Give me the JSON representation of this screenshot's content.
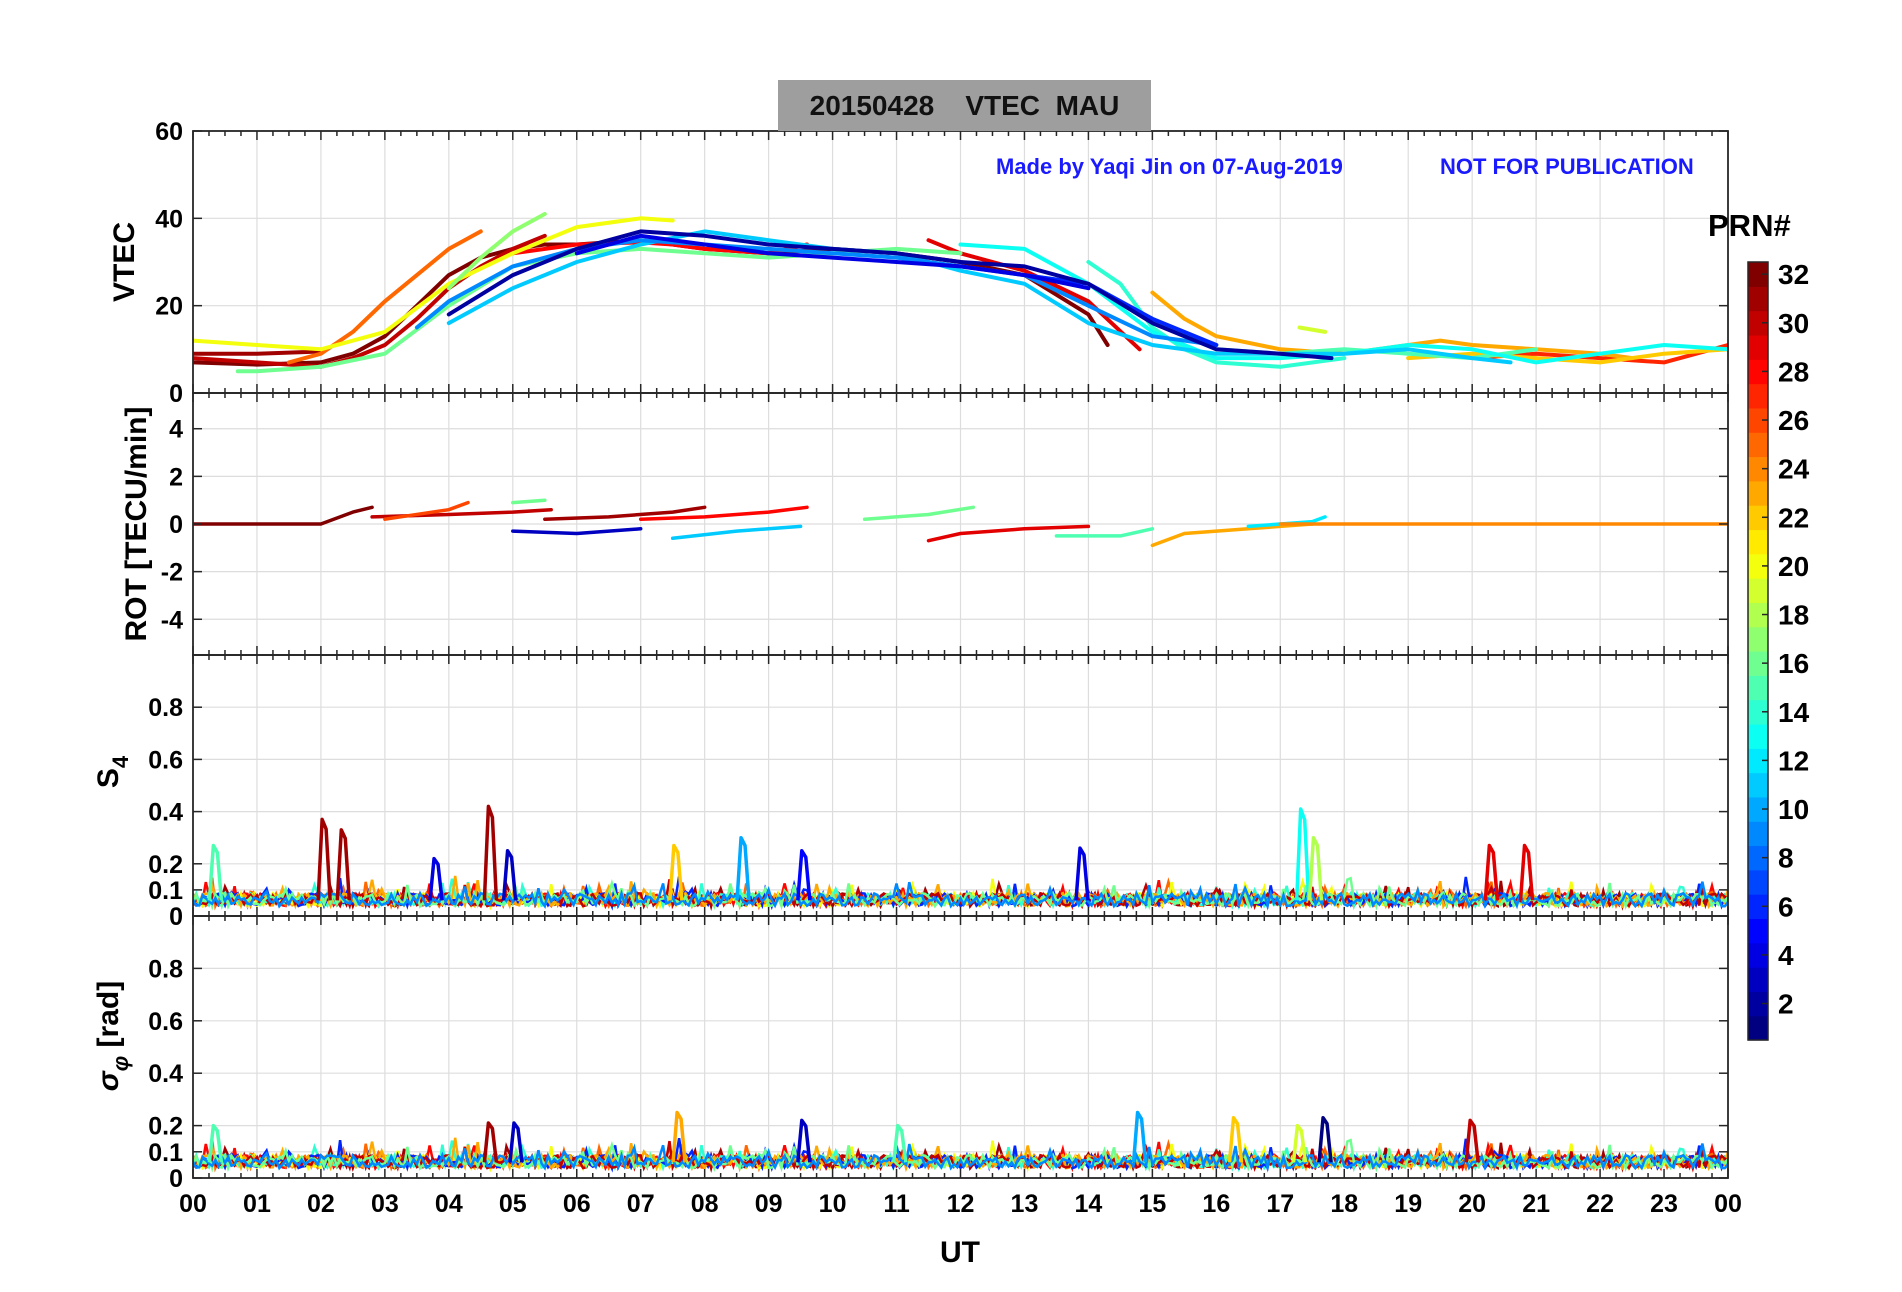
{
  "title": {
    "date": "20150428",
    "quantity": "VTEC",
    "station": "MAU"
  },
  "watermark": {
    "author": "Made by Yaqi Jin on 07-Aug-2019",
    "notice": "NOT FOR PUBLICATION"
  },
  "colorbar": {
    "title": "PRN#",
    "ticks": [
      "2",
      "4",
      "6",
      "8",
      "10",
      "12",
      "14",
      "16",
      "18",
      "20",
      "22",
      "24",
      "26",
      "28",
      "30",
      "32"
    ],
    "range": [
      1,
      32
    ],
    "colormap": "jet",
    "colors": {
      "low": "#00008f",
      "mid": "#00ffff",
      "high": "#800000"
    }
  },
  "colors": {
    "grid": "#dddddd",
    "axis": "#262626",
    "title_bg": "#9e9e9e",
    "watermark": "#1a1aff"
  },
  "x_axis": {
    "label": "UT",
    "ticks": [
      "00",
      "01",
      "02",
      "03",
      "04",
      "05",
      "06",
      "07",
      "08",
      "09",
      "10",
      "11",
      "12",
      "13",
      "14",
      "15",
      "16",
      "17",
      "18",
      "19",
      "20",
      "21",
      "22",
      "23",
      "00"
    ],
    "range": [
      0,
      24
    ]
  },
  "chart_data": [
    {
      "type": "line",
      "panel": "vtec",
      "ylabel": "VTEC",
      "ylim": [
        0,
        60
      ],
      "yticks": [
        "0",
        "20",
        "40",
        "60"
      ],
      "grid": true,
      "series": [
        {
          "prn": 32,
          "x": [
            0,
            1,
            2,
            2.5,
            3,
            3.5,
            4,
            4.5,
            5,
            5.5,
            6,
            7,
            8,
            9,
            10,
            11,
            12,
            13,
            14,
            14.3
          ],
          "values": [
            7,
            6.5,
            7,
            9,
            13,
            20,
            27,
            31,
            33,
            34,
            34,
            35,
            33,
            32,
            33,
            32,
            30,
            27,
            18,
            11
          ]
        },
        {
          "prn": 31,
          "x": [
            0,
            1,
            2
          ],
          "values": [
            9,
            9,
            9.5
          ]
        },
        {
          "prn": 30,
          "x": [
            0,
            1,
            2,
            2.5,
            3,
            3.5,
            4,
            4.5,
            5,
            5.5
          ],
          "values": [
            8,
            7,
            6,
            8,
            11,
            17,
            24,
            29,
            33,
            36
          ]
        },
        {
          "prn": 29,
          "x": [
            11.5,
            12,
            13,
            14,
            14.8
          ],
          "values": [
            35,
            32,
            28,
            21,
            10
          ]
        },
        {
          "prn": 28,
          "x": [
            5,
            6,
            7,
            7.5,
            8,
            9,
            9.6
          ],
          "values": [
            32,
            34,
            34.5,
            34,
            33,
            32,
            34
          ]
        },
        {
          "prn": 25,
          "x": [
            1.5,
            2,
            2.5,
            3,
            3.5,
            4,
            4.5
          ],
          "values": [
            7,
            9,
            14,
            21,
            27,
            33,
            37
          ]
        },
        {
          "prn": 27,
          "x": [
            20,
            21,
            22,
            23,
            24
          ],
          "values": [
            8,
            9,
            8,
            7,
            11
          ]
        },
        {
          "prn": 23,
          "x": [
            15,
            15.5,
            16,
            17,
            18,
            19,
            19.5,
            20,
            21,
            22,
            22.5
          ],
          "values": [
            23,
            17,
            13,
            10,
            9,
            11,
            12,
            11,
            10,
            9,
            8
          ]
        },
        {
          "prn": 22,
          "x": [
            19,
            20,
            21,
            22,
            23,
            24
          ],
          "values": [
            8,
            9,
            8,
            7,
            9,
            10
          ]
        },
        {
          "prn": 20,
          "x": [
            0,
            1,
            2,
            3,
            4,
            5,
            6,
            7,
            7.5
          ],
          "values": [
            12,
            11,
            10,
            14,
            25,
            32,
            38,
            40,
            39.5
          ]
        },
        {
          "prn": 19,
          "x": [
            17.3,
            17.7
          ],
          "values": [
            15,
            14
          ]
        },
        {
          "prn": 17,
          "x": [
            4,
            4.5,
            5,
            5.5
          ],
          "values": [
            24,
            31,
            37,
            41
          ]
        },
        {
          "prn": 16,
          "x": [
            0.7,
            1,
            2,
            3,
            4,
            5,
            6,
            7,
            8,
            9,
            10,
            11,
            12
          ],
          "values": [
            5,
            5,
            6,
            9,
            20,
            29,
            32,
            33,
            32,
            31,
            32,
            33,
            32
          ]
        },
        {
          "prn": 15,
          "x": [
            15,
            16,
            17,
            18,
            19,
            20,
            21
          ],
          "values": [
            17,
            10,
            9,
            10,
            9,
            8,
            10
          ]
        },
        {
          "prn": 14,
          "x": [
            14,
            14.5,
            15,
            15.5,
            16,
            17,
            18
          ],
          "values": [
            30,
            25,
            15,
            10,
            7,
            6,
            8
          ]
        },
        {
          "prn": 13,
          "x": [
            12,
            13,
            14,
            15,
            16,
            17,
            18,
            19,
            20,
            21,
            22,
            23,
            24
          ],
          "values": [
            34,
            33,
            25,
            14,
            8,
            8,
            9,
            11,
            10,
            7,
            9,
            11,
            10
          ]
        },
        {
          "prn": 11,
          "x": [
            4,
            5,
            6,
            7,
            8,
            9,
            10,
            11,
            12,
            13,
            14,
            15,
            16,
            17,
            18,
            19,
            20,
            20.6
          ],
          "values": [
            16,
            24,
            30,
            34,
            37,
            35,
            33,
            32,
            28,
            25,
            16,
            11,
            9,
            9,
            9,
            10,
            8,
            7
          ]
        },
        {
          "prn": 9,
          "x": [
            3.5,
            4,
            5,
            6,
            7,
            8,
            9,
            10,
            11,
            12,
            13,
            14,
            15,
            16
          ],
          "values": [
            15,
            21,
            29,
            33,
            35,
            34,
            33,
            32,
            31,
            29,
            27,
            20,
            13,
            11
          ]
        },
        {
          "prn": 6,
          "x": [
            13,
            14,
            15,
            16
          ],
          "values": [
            27,
            25,
            17,
            11
          ]
        },
        {
          "prn": 4,
          "x": [
            6,
            7,
            8,
            9,
            10,
            11,
            12,
            13,
            14
          ],
          "values": [
            32,
            36,
            34,
            32,
            31,
            30,
            29,
            27,
            24
          ]
        },
        {
          "prn": 2,
          "x": [
            4,
            5,
            6,
            7,
            8,
            9,
            10,
            11,
            12,
            13,
            14,
            15,
            16,
            17,
            17.8
          ],
          "values": [
            18,
            27,
            33,
            37,
            36,
            34,
            33,
            32,
            30,
            29,
            25,
            16,
            10,
            9,
            8
          ]
        }
      ]
    },
    {
      "type": "line",
      "panel": "rot",
      "ylabel": "ROT [TECU/min]",
      "ylim": [
        -5.5,
        5.5
      ],
      "yticks": [
        "-4",
        "-2",
        "0",
        "2",
        "4"
      ],
      "grid": true,
      "series": [
        {
          "prn": 32,
          "x": [
            0,
            2,
            2.3,
            2.5,
            2.8
          ],
          "values": [
            0,
            0,
            0.3,
            0.5,
            0.7
          ]
        },
        {
          "prn": 30,
          "x": [
            2.8,
            4,
            5,
            5.6
          ],
          "values": [
            0.3,
            0.4,
            0.5,
            0.6
          ]
        },
        {
          "prn": 26,
          "x": [
            3,
            4,
            4.3
          ],
          "values": [
            0.2,
            0.6,
            0.9
          ]
        },
        {
          "prn": 16,
          "x": [
            5,
            5.5
          ],
          "values": [
            0.9,
            1.0
          ]
        },
        {
          "prn": 31,
          "x": [
            5.5,
            6.5,
            7.5,
            8
          ],
          "values": [
            0.2,
            0.3,
            0.5,
            0.7
          ]
        },
        {
          "prn": 28,
          "x": [
            7,
            8,
            9,
            9.6
          ],
          "values": [
            0.2,
            0.3,
            0.5,
            0.7
          ]
        },
        {
          "prn": 11,
          "x": [
            7.5,
            8.5,
            9.5
          ],
          "values": [
            -0.6,
            -0.3,
            -0.1
          ]
        },
        {
          "prn": 16,
          "x": [
            10.5,
            11.5,
            12.2
          ],
          "values": [
            0.2,
            0.4,
            0.7
          ]
        },
        {
          "prn": 29,
          "x": [
            11.5,
            12,
            13,
            14
          ],
          "values": [
            -0.7,
            -0.4,
            -0.2,
            -0.1
          ]
        },
        {
          "prn": 3,
          "x": [
            5,
            6,
            7
          ],
          "values": [
            -0.3,
            -0.4,
            -0.2
          ]
        },
        {
          "prn": 15,
          "x": [
            13.5,
            14.5,
            15
          ],
          "values": [
            -0.5,
            -0.5,
            -0.2
          ]
        },
        {
          "prn": 23,
          "x": [
            15,
            15.5,
            16.5,
            17.5
          ],
          "values": [
            -0.9,
            -0.4,
            -0.2,
            0
          ]
        },
        {
          "prn": 12,
          "x": [
            16.5,
            17.5,
            17.7
          ],
          "values": [
            -0.1,
            0.1,
            0.3
          ]
        },
        {
          "prn": 24,
          "x": [
            17,
            20,
            22,
            24
          ],
          "values": [
            0,
            0,
            0,
            0
          ]
        }
      ]
    },
    {
      "type": "line",
      "panel": "s4",
      "ylabel": "S4",
      "ylim": [
        0,
        1
      ],
      "yticks": [
        "0",
        "0.1",
        "0.2",
        "0.4",
        "0.6",
        "0.8"
      ],
      "grid": true,
      "baseline": 0.06,
      "spikes": [
        {
          "x": 0.35,
          "value": 0.27,
          "prn": 15
        },
        {
          "x": 2.05,
          "value": 0.37,
          "prn": 31
        },
        {
          "x": 2.35,
          "value": 0.33,
          "prn": 31
        },
        {
          "x": 3.8,
          "value": 0.22,
          "prn": 4
        },
        {
          "x": 4.65,
          "value": 0.42,
          "prn": 31
        },
        {
          "x": 4.95,
          "value": 0.25,
          "prn": 3
        },
        {
          "x": 7.55,
          "value": 0.27,
          "prn": 22
        },
        {
          "x": 8.6,
          "value": 0.3,
          "prn": 10
        },
        {
          "x": 9.55,
          "value": 0.25,
          "prn": 5
        },
        {
          "x": 13.9,
          "value": 0.26,
          "prn": 4
        },
        {
          "x": 17.35,
          "value": 0.41,
          "prn": 13
        },
        {
          "x": 17.55,
          "value": 0.3,
          "prn": 18
        },
        {
          "x": 20.3,
          "value": 0.27,
          "prn": 29
        },
        {
          "x": 20.85,
          "value": 0.27,
          "prn": 29
        }
      ]
    },
    {
      "type": "line",
      "panel": "sigma_phi",
      "ylabel": "σφ [rad]",
      "ylim": [
        0,
        1
      ],
      "yticks": [
        "0",
        "0.1",
        "0.2",
        "0.4",
        "0.6",
        "0.8"
      ],
      "grid": true,
      "baseline": 0.06,
      "spikes": [
        {
          "x": 0.35,
          "value": 0.2,
          "prn": 15
        },
        {
          "x": 4.65,
          "value": 0.21,
          "prn": 31
        },
        {
          "x": 5.05,
          "value": 0.21,
          "prn": 3
        },
        {
          "x": 7.6,
          "value": 0.25,
          "prn": 23
        },
        {
          "x": 9.55,
          "value": 0.22,
          "prn": 3
        },
        {
          "x": 11.05,
          "value": 0.2,
          "prn": 15
        },
        {
          "x": 14.8,
          "value": 0.25,
          "prn": 10
        },
        {
          "x": 16.3,
          "value": 0.23,
          "prn": 22
        },
        {
          "x": 17.3,
          "value": 0.2,
          "prn": 19
        },
        {
          "x": 17.7,
          "value": 0.23,
          "prn": 1
        },
        {
          "x": 20.0,
          "value": 0.22,
          "prn": 30
        }
      ]
    }
  ]
}
